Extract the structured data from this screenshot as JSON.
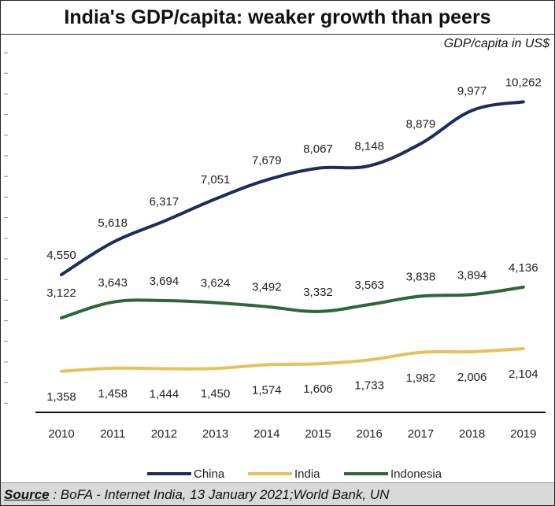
{
  "header": {
    "title": "India's GDP/capita: weaker growth than  peers",
    "unit": "GDP/capita in US$"
  },
  "source": {
    "label": "Source",
    "text": " : BoFA - Internet India, 13 January 2021;World Bank, UN"
  },
  "colors": {
    "China": "#1c2c5b",
    "India": "#e8c15a",
    "Indonesia": "#2e6637"
  },
  "chart_data": {
    "type": "line",
    "title": "India's GDP/capita: weaker growth than  peers",
    "ylabel": "GDP/capita in US$",
    "xlabel": "",
    "x": [
      "2010",
      "2011",
      "2012",
      "2013",
      "2014",
      "2015",
      "2016",
      "2017",
      "2018",
      "2019"
    ],
    "ylim": [
      0,
      11000
    ],
    "legend": "bottom",
    "series": [
      {
        "name": "China",
        "values": [
          4550,
          5618,
          6317,
          7051,
          7679,
          8067,
          8148,
          8879,
          9977,
          10262
        ],
        "labels": [
          "4,550",
          "5,618",
          "6,317",
          "7,051",
          "7,679",
          "8,067",
          "8,148",
          "8,879",
          "9,977",
          "10,262"
        ],
        "label_pos": "above"
      },
      {
        "name": "India",
        "values": [
          1358,
          1458,
          1444,
          1450,
          1574,
          1606,
          1733,
          1982,
          2006,
          2104
        ],
        "labels": [
          "1,358",
          "1,458",
          "1,444",
          "1,450",
          "1,574",
          "1,606",
          "1,733",
          "1,982",
          "2,006",
          "2,104"
        ],
        "label_pos": "below"
      },
      {
        "name": "Indonesia",
        "values": [
          3122,
          3643,
          3694,
          3624,
          3492,
          3332,
          3563,
          3838,
          3894,
          4136
        ],
        "labels": [
          "3,122",
          "3,643",
          "3,694",
          "3,624",
          "3,492",
          "3,332",
          "3,563",
          "3,838",
          "3,894",
          "4,136"
        ],
        "label_pos": "above"
      }
    ]
  }
}
